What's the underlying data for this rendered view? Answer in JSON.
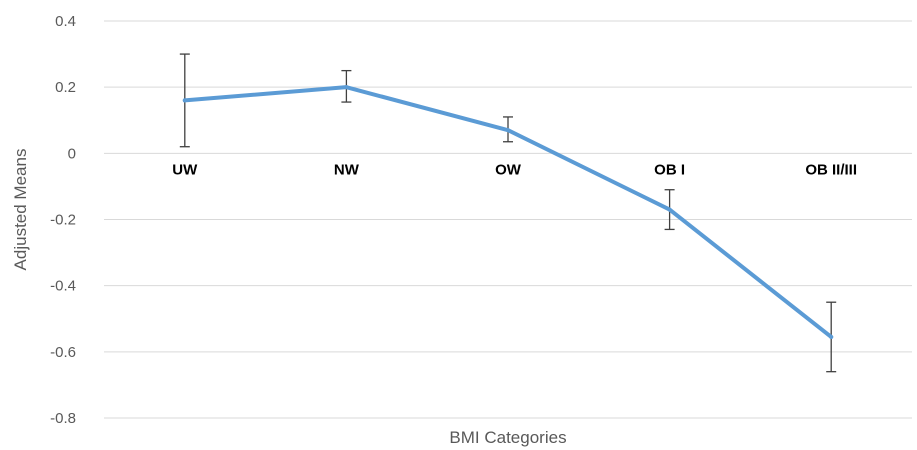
{
  "chart_data": {
    "type": "line",
    "title": "",
    "xlabel": "BMI Categories",
    "ylabel": "Adjusted Means",
    "categories": [
      "UW",
      "NW",
      "OW",
      "OB I",
      "OB II/III"
    ],
    "series": [
      {
        "values": [
          0.16,
          0.2,
          0.07,
          -0.17,
          -0.555
        ],
        "error_low": [
          0.02,
          0.155,
          0.035,
          -0.23,
          -0.66
        ],
        "error_high": [
          0.3,
          0.25,
          0.11,
          -0.11,
          -0.45
        ],
        "color": "#5b9bd5"
      }
    ],
    "ylim": [
      -0.8,
      0.4
    ],
    "yticks": [
      0.4,
      0.2,
      0,
      -0.2,
      -0.4,
      -0.6,
      -0.8
    ],
    "ytick_labels": [
      "0.4",
      "0.2",
      "0",
      "-0.2",
      "-0.4",
      "-0.6",
      "-0.8"
    ],
    "grid": true,
    "legend": "none",
    "category_label_position": "at zero line"
  }
}
